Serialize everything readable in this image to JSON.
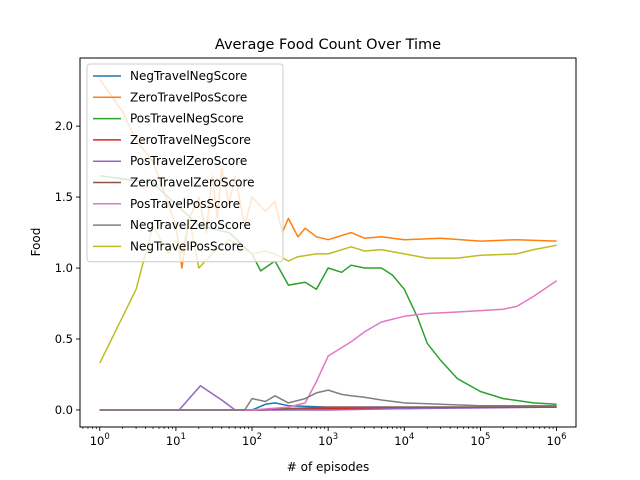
{
  "chart_data": {
    "type": "line",
    "title": "Average Food Count Over Time",
    "xlabel": "# of episodes",
    "ylabel": "Food",
    "xscale": "log",
    "xlim": [
      0.55,
      1800000
    ],
    "ylim": [
      -0.12,
      2.48
    ],
    "grid": false,
    "legend_position": "upper-left",
    "xticks": [
      {
        "base": "10",
        "exp": "0",
        "value": 1
      },
      {
        "base": "10",
        "exp": "1",
        "value": 10
      },
      {
        "base": "10",
        "exp": "2",
        "value": 100
      },
      {
        "base": "10",
        "exp": "3",
        "value": 1000
      },
      {
        "base": "10",
        "exp": "4",
        "value": 10000
      },
      {
        "base": "10",
        "exp": "5",
        "value": 100000
      },
      {
        "base": "10",
        "exp": "6",
        "value": 1000000
      }
    ],
    "yticks": [
      "0.0",
      "0.5",
      "1.0",
      "1.5",
      "2.0"
    ],
    "series": [
      {
        "name": "NegTravelNegScore",
        "color": "#1f77b4",
        "points": [
          [
            1,
            0
          ],
          [
            100,
            0
          ],
          [
            150,
            0.04
          ],
          [
            200,
            0.05
          ],
          [
            300,
            0.03
          ],
          [
            1000,
            0.02
          ],
          [
            10000,
            0.02
          ],
          [
            1000000,
            0.02
          ]
        ]
      },
      {
        "name": "ZeroTravelPosScore",
        "color": "#ff7f0e",
        "points": [
          [
            1,
            2.33
          ],
          [
            2,
            2.1
          ],
          [
            3,
            1.9
          ],
          [
            5,
            1.75
          ],
          [
            8,
            1.45
          ],
          [
            10,
            1.3
          ],
          [
            12,
            1.0
          ],
          [
            15,
            1.35
          ],
          [
            20,
            1.5
          ],
          [
            25,
            1.25
          ],
          [
            30,
            1.65
          ],
          [
            35,
            1.35
          ],
          [
            40,
            1.7
          ],
          [
            50,
            1.45
          ],
          [
            60,
            1.65
          ],
          [
            80,
            1.3
          ],
          [
            100,
            1.5
          ],
          [
            150,
            1.4
          ],
          [
            200,
            1.47
          ],
          [
            250,
            1.25
          ],
          [
            300,
            1.35
          ],
          [
            400,
            1.22
          ],
          [
            500,
            1.28
          ],
          [
            700,
            1.22
          ],
          [
            1000,
            1.2
          ],
          [
            2000,
            1.25
          ],
          [
            3000,
            1.21
          ],
          [
            5000,
            1.22
          ],
          [
            10000,
            1.2
          ],
          [
            30000,
            1.21
          ],
          [
            100000,
            1.19
          ],
          [
            300000,
            1.2
          ],
          [
            1000000,
            1.19
          ]
        ]
      },
      {
        "name": "PosTravelNegScore",
        "color": "#2ca02c",
        "points": [
          [
            1,
            1.65
          ],
          [
            5,
            1.6
          ],
          [
            10,
            1.45
          ],
          [
            20,
            1.3
          ],
          [
            50,
            1.25
          ],
          [
            100,
            1.1
          ],
          [
            130,
            0.98
          ],
          [
            200,
            1.05
          ],
          [
            300,
            0.88
          ],
          [
            500,
            0.9
          ],
          [
            700,
            0.85
          ],
          [
            1000,
            1.0
          ],
          [
            1500,
            0.97
          ],
          [
            2000,
            1.02
          ],
          [
            3000,
            1.0
          ],
          [
            5000,
            1.0
          ],
          [
            7000,
            0.95
          ],
          [
            10000,
            0.85
          ],
          [
            15000,
            0.65
          ],
          [
            20000,
            0.47
          ],
          [
            30000,
            0.35
          ],
          [
            50000,
            0.22
          ],
          [
            100000,
            0.13
          ],
          [
            200000,
            0.08
          ],
          [
            500000,
            0.05
          ],
          [
            1000000,
            0.04
          ]
        ]
      },
      {
        "name": "ZeroTravelNegScore",
        "color": "#d62728",
        "points": [
          [
            1,
            0
          ],
          [
            150,
            0.0
          ],
          [
            300,
            0.01
          ],
          [
            1000,
            0.01
          ],
          [
            10000,
            0.01
          ],
          [
            100000,
            0.02
          ],
          [
            1000000,
            0.02
          ]
        ]
      },
      {
        "name": "PosTravelZeroScore",
        "color": "#9467bd",
        "points": [
          [
            1,
            0
          ],
          [
            11,
            0
          ],
          [
            21,
            0.17
          ],
          [
            40,
            0.07
          ],
          [
            60,
            0
          ],
          [
            100,
            0
          ],
          [
            1000,
            0
          ],
          [
            10000,
            0.01
          ],
          [
            1000000,
            0.02
          ]
        ]
      },
      {
        "name": "ZeroTravelZeroScore",
        "color": "#8c564b",
        "points": [
          [
            1,
            0
          ],
          [
            100,
            0
          ],
          [
            300,
            0.01
          ],
          [
            1000,
            0.02
          ],
          [
            3000,
            0.02
          ],
          [
            10000,
            0.02
          ],
          [
            1000000,
            0.02
          ]
        ]
      },
      {
        "name": "PosTravelPosScore",
        "color": "#e377c2",
        "points": [
          [
            1,
            0
          ],
          [
            100,
            0
          ],
          [
            300,
            0.02
          ],
          [
            500,
            0.05
          ],
          [
            700,
            0.2
          ],
          [
            1000,
            0.38
          ],
          [
            2000,
            0.48
          ],
          [
            3000,
            0.55
          ],
          [
            5000,
            0.62
          ],
          [
            10000,
            0.66
          ],
          [
            20000,
            0.68
          ],
          [
            50000,
            0.69
          ],
          [
            100000,
            0.7
          ],
          [
            200000,
            0.71
          ],
          [
            300000,
            0.73
          ],
          [
            500000,
            0.8
          ],
          [
            1000000,
            0.91
          ]
        ]
      },
      {
        "name": "NegTravelZeroScore",
        "color": "#7f7f7f",
        "points": [
          [
            1,
            0
          ],
          [
            80,
            0
          ],
          [
            100,
            0.08
          ],
          [
            150,
            0.06
          ],
          [
            200,
            0.1
          ],
          [
            300,
            0.05
          ],
          [
            500,
            0.08
          ],
          [
            700,
            0.12
          ],
          [
            1000,
            0.14
          ],
          [
            1500,
            0.11
          ],
          [
            2000,
            0.1
          ],
          [
            3000,
            0.09
          ],
          [
            5000,
            0.07
          ],
          [
            10000,
            0.05
          ],
          [
            30000,
            0.04
          ],
          [
            100000,
            0.03
          ],
          [
            1000000,
            0.03
          ]
        ]
      },
      {
        "name": "NegTravelPosScore",
        "color": "#bcbd22",
        "points": [
          [
            1,
            0.33
          ],
          [
            3,
            0.85
          ],
          [
            5,
            1.3
          ],
          [
            8,
            1.1
          ],
          [
            10,
            1.2
          ],
          [
            12,
            1.1
          ],
          [
            15,
            1.35
          ],
          [
            20,
            1.0
          ],
          [
            30,
            1.1
          ],
          [
            50,
            1.2
          ],
          [
            100,
            1.1
          ],
          [
            150,
            1.12
          ],
          [
            200,
            1.1
          ],
          [
            300,
            1.05
          ],
          [
            400,
            1.08
          ],
          [
            700,
            1.1
          ],
          [
            1000,
            1.1
          ],
          [
            2000,
            1.15
          ],
          [
            3000,
            1.12
          ],
          [
            5000,
            1.13
          ],
          [
            10000,
            1.1
          ],
          [
            20000,
            1.07
          ],
          [
            50000,
            1.07
          ],
          [
            100000,
            1.09
          ],
          [
            300000,
            1.1
          ],
          [
            500000,
            1.13
          ],
          [
            1000000,
            1.16
          ]
        ]
      }
    ]
  }
}
